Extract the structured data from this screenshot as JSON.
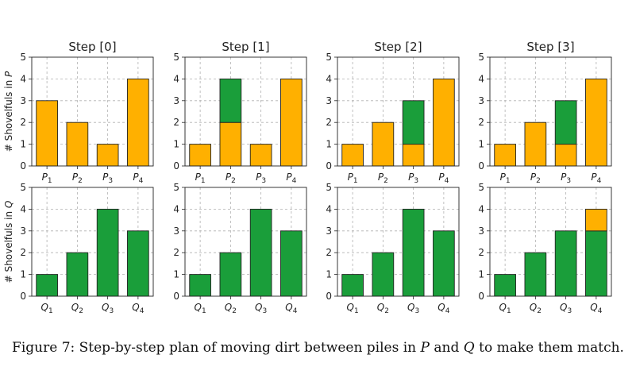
{
  "figure": {
    "caption_prefix": "Figure 7: Step-by-step plan of moving dirt between piles in",
    "caption_var1": "P",
    "caption_middle": "and",
    "caption_var2": "Q",
    "caption_suffix": "to make them match."
  },
  "colors": {
    "P": "#FFB000",
    "Q": "#1A9E3A",
    "grid": "#b0b0b0"
  },
  "chart_data": [
    {
      "type": "bar",
      "title": "Step [0]",
      "row": "P",
      "ylabel": "# Shovelfuls in P",
      "ylim": [
        0,
        5
      ],
      "grid": true,
      "categories": [
        "P1",
        "P2",
        "P3",
        "P4"
      ],
      "series": [
        {
          "values": [
            3,
            2,
            1,
            4
          ]
        },
        {
          "values": [
            0,
            0,
            0,
            0
          ]
        }
      ]
    },
    {
      "type": "bar",
      "title": "Step [1]",
      "row": "P",
      "ylim": [
        0,
        5
      ],
      "grid": true,
      "categories": [
        "P1",
        "P2",
        "P3",
        "P4"
      ],
      "series": [
        {
          "values": [
            1,
            2,
            1,
            4
          ]
        },
        {
          "values": [
            0,
            2,
            0,
            0
          ]
        }
      ]
    },
    {
      "type": "bar",
      "title": "Step [2]",
      "row": "P",
      "ylim": [
        0,
        5
      ],
      "grid": true,
      "categories": [
        "P1",
        "P2",
        "P3",
        "P4"
      ],
      "series": [
        {
          "values": [
            1,
            2,
            1,
            4
          ]
        },
        {
          "values": [
            0,
            0,
            2,
            0
          ]
        }
      ]
    },
    {
      "type": "bar",
      "title": "Step [3]",
      "row": "P",
      "ylim": [
        0,
        5
      ],
      "grid": true,
      "categories": [
        "P1",
        "P2",
        "P3",
        "P4"
      ],
      "series": [
        {
          "values": [
            1,
            2,
            1,
            4
          ]
        },
        {
          "values": [
            0,
            0,
            2,
            0
          ]
        }
      ]
    },
    {
      "type": "bar",
      "row": "Q",
      "ylabel": "# Shovelfuls in Q",
      "ylim": [
        0,
        5
      ],
      "grid": true,
      "categories": [
        "Q1",
        "Q2",
        "Q3",
        "Q4"
      ],
      "series": [
        {
          "values": [
            1,
            2,
            4,
            3
          ]
        },
        {
          "values": [
            0,
            0,
            0,
            0
          ]
        }
      ]
    },
    {
      "type": "bar",
      "row": "Q",
      "ylim": [
        0,
        5
      ],
      "grid": true,
      "categories": [
        "Q1",
        "Q2",
        "Q3",
        "Q4"
      ],
      "series": [
        {
          "values": [
            1,
            2,
            4,
            3
          ]
        },
        {
          "values": [
            0,
            0,
            0,
            0
          ]
        }
      ]
    },
    {
      "type": "bar",
      "row": "Q",
      "ylim": [
        0,
        5
      ],
      "grid": true,
      "categories": [
        "Q1",
        "Q2",
        "Q3",
        "Q4"
      ],
      "series": [
        {
          "values": [
            1,
            2,
            4,
            3
          ]
        },
        {
          "values": [
            0,
            0,
            0,
            0
          ]
        }
      ]
    },
    {
      "type": "bar",
      "row": "Q",
      "ylim": [
        0,
        5
      ],
      "grid": true,
      "categories": [
        "Q1",
        "Q2",
        "Q3",
        "Q4"
      ],
      "series": [
        {
          "values": [
            1,
            2,
            3,
            3
          ]
        },
        {
          "values": [
            0,
            0,
            0,
            1
          ]
        }
      ]
    }
  ]
}
